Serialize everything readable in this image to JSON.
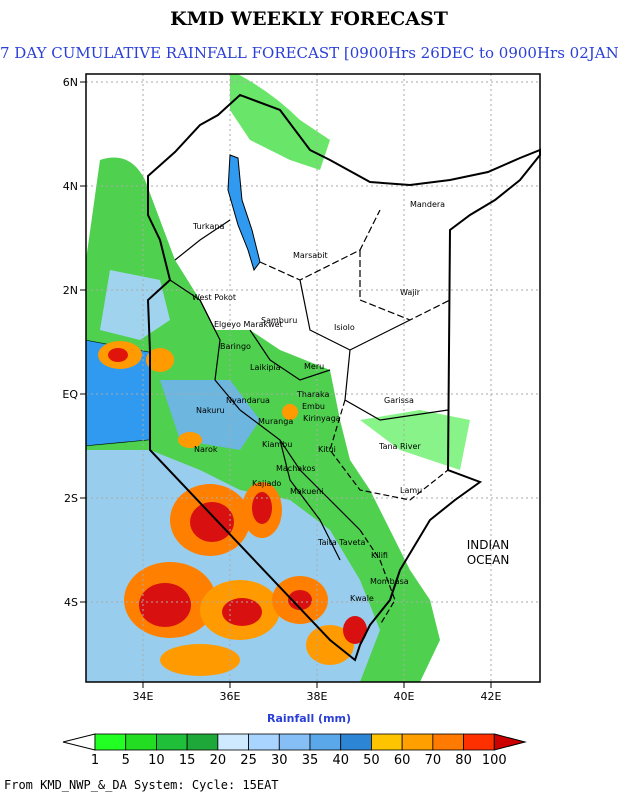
{
  "header": {
    "title": "KMD WEEKLY FORECAST",
    "subtitle": "7 DAY CUMULATIVE RAINFALL FORECAST [0900Hrs 26DEC to 0900Hrs 02JAN]"
  },
  "map": {
    "lat_labels": [
      "6N",
      "4N",
      "2N",
      "EQ",
      "2S",
      "4S"
    ],
    "lon_labels": [
      "34E",
      "36E",
      "38E",
      "40E",
      "42E"
    ],
    "places": [
      {
        "name": "Mandera"
      },
      {
        "name": "Turkana"
      },
      {
        "name": "Marsabit"
      },
      {
        "name": "Wajir"
      },
      {
        "name": "West Pokot"
      },
      {
        "name": "Elgeyo Marakwet"
      },
      {
        "name": "Samburu"
      },
      {
        "name": "Isiolo"
      },
      {
        "name": "Baringo"
      },
      {
        "name": "Laikipia"
      },
      {
        "name": "Meru"
      },
      {
        "name": "Tharaka"
      },
      {
        "name": "Embu"
      },
      {
        "name": "Kirinyaga"
      },
      {
        "name": "Garissa"
      },
      {
        "name": "Nyandarua"
      },
      {
        "name": "Nakuru"
      },
      {
        "name": "Muranga"
      },
      {
        "name": "Narok"
      },
      {
        "name": "Kiambu"
      },
      {
        "name": "Kitui"
      },
      {
        "name": "Machakos"
      },
      {
        "name": "Tana River"
      },
      {
        "name": "Kajiado"
      },
      {
        "name": "Makueni"
      },
      {
        "name": "Lamu"
      },
      {
        "name": "Taita Taveta"
      },
      {
        "name": "Kilifi"
      },
      {
        "name": "Mombasa"
      },
      {
        "name": "Kwale"
      }
    ],
    "ocean_label": [
      "INDIAN",
      "OCEAN"
    ]
  },
  "colorbar": {
    "label": "Rainfall (mm)",
    "ticks": [
      "1",
      "5",
      "10",
      "15",
      "20",
      "25",
      "30",
      "35",
      "40",
      "50",
      "60",
      "70",
      "80",
      "100"
    ],
    "colors": [
      "#22ff22",
      "#22dd22",
      "#1fbf3a",
      "#1fa83a",
      "#cfe9ff",
      "#a8d4ff",
      "#86bff5",
      "#5aa8ea",
      "#2d85d6",
      "#ffc400",
      "#ffa000",
      "#ff7a00",
      "#ff3000",
      "#cc0000"
    ]
  },
  "footer": "From KMD_NWP_&_DA System: Cycle: 15EAT"
}
